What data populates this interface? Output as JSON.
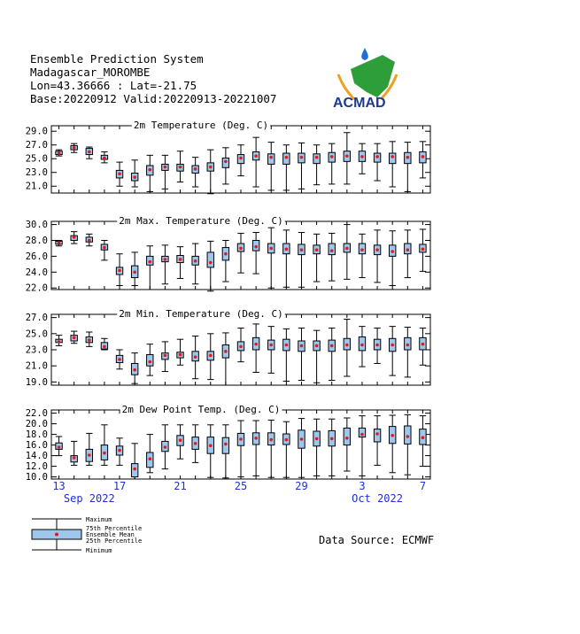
{
  "header": {
    "line1": "Ensemble Prediction System",
    "line2": "Madagascar_MOROMBE",
    "line3": "Lon=43.36666 : Lat=-21.75",
    "line4": "Base:20220912 Valid:20220913-20221007"
  },
  "logo": {
    "text": "ACMAD"
  },
  "source": "Data Source: ECMWF",
  "colors": {
    "box_fill": "#9fc7ee",
    "mean_dot": "#e01b1b",
    "x_labels": "#1f2fd6"
  },
  "legend": {
    "maximum": "Maximum",
    "p75": "75th Percentile",
    "mean": "Ensemble Mean",
    "p25": "25th Percentile",
    "minimum": "Minimum"
  },
  "x_axis": {
    "days": [
      "13",
      "14",
      "15",
      "16",
      "17",
      "18",
      "19",
      "20",
      "21",
      "22",
      "23",
      "24",
      "25",
      "26",
      "27",
      "28",
      "29",
      "30",
      "1",
      "2",
      "3",
      "4",
      "5",
      "6",
      "7"
    ],
    "tick_labels": [
      {
        "day_index": 0,
        "label": "13"
      },
      {
        "day_index": 4,
        "label": "17"
      },
      {
        "day_index": 8,
        "label": "21"
      },
      {
        "day_index": 12,
        "label": "25"
      },
      {
        "day_index": 16,
        "label": "29"
      },
      {
        "day_index": 20,
        "label": "3"
      },
      {
        "day_index": 24,
        "label": "7"
      }
    ],
    "month_labels": [
      {
        "day_index": 2,
        "label": "Sep 2022"
      },
      {
        "day_index": 21,
        "label": "Oct 2022"
      }
    ]
  },
  "chart_data": [
    {
      "type": "boxplot",
      "title": "2m Temperature (Deg. C)",
      "ylim": [
        20.0,
        29.8
      ],
      "yticks": [
        "21.0",
        "23.0",
        "25.0",
        "27.0",
        "29.0"
      ],
      "min": [
        25.4,
        25.9,
        25.0,
        24.4,
        21.0,
        20.9,
        20.2,
        20.6,
        21.6,
        20.9,
        19.9,
        21.3,
        22.5,
        20.9,
        20.4,
        20.4,
        20.6,
        21.2,
        21.3,
        21.3,
        22.8,
        21.8,
        20.9,
        20.2,
        22.2
      ],
      "p25": [
        25.6,
        26.3,
        25.6,
        24.9,
        22.2,
        21.8,
        22.6,
        23.3,
        23.2,
        22.9,
        23.2,
        23.7,
        24.3,
        24.8,
        24.2,
        24.2,
        24.4,
        24.3,
        24.5,
        24.6,
        24.6,
        24.5,
        24.3,
        24.3,
        24.4
      ],
      "mean": [
        25.8,
        26.6,
        26.0,
        25.1,
        22.8,
        22.3,
        23.4,
        23.8,
        23.8,
        23.5,
        23.8,
        24.6,
        25.1,
        25.4,
        25.2,
        25.2,
        25.2,
        25.2,
        25.3,
        25.4,
        25.3,
        25.3,
        25.3,
        25.2,
        25.3
      ],
      "p75": [
        26.1,
        26.9,
        26.5,
        25.5,
        23.3,
        22.9,
        24.0,
        24.2,
        24.2,
        24.0,
        24.4,
        25.1,
        25.6,
        26.0,
        25.7,
        25.8,
        25.8,
        25.7,
        25.9,
        26.1,
        26.1,
        25.8,
        25.8,
        25.9,
        26.0
      ],
      "max": [
        26.3,
        27.2,
        26.7,
        26.0,
        24.5,
        24.8,
        25.5,
        25.5,
        26.1,
        25.2,
        26.3,
        26.6,
        27.0,
        28.1,
        27.4,
        27.0,
        27.3,
        27.0,
        27.2,
        28.8,
        27.2,
        27.2,
        27.5,
        27.4,
        27.5
      ]
    },
    {
      "type": "boxplot",
      "title": "2m Max. Temperature (Deg. C)",
      "ylim": [
        21.8,
        30.4
      ],
      "yticks": [
        "22.0",
        "24.0",
        "26.0",
        "28.0",
        "30.0"
      ],
      "min": [
        27.3,
        27.6,
        27.3,
        25.5,
        22.3,
        22.3,
        21.8,
        22.5,
        23.2,
        22.5,
        21.6,
        22.8,
        23.9,
        23.8,
        22.0,
        22.1,
        22.1,
        22.8,
        22.9,
        23.1,
        23.3,
        22.7,
        22.3,
        23.3,
        24.1
      ],
      "p25": [
        27.5,
        28.0,
        27.8,
        26.8,
        23.7,
        23.3,
        24.9,
        25.3,
        25.2,
        24.9,
        24.6,
        25.5,
        26.6,
        26.7,
        26.4,
        26.3,
        26.2,
        26.3,
        26.2,
        26.5,
        26.3,
        26.2,
        26.0,
        26.3,
        26.5
      ],
      "mean": [
        27.7,
        28.4,
        28.0,
        27.1,
        24.2,
        24.0,
        25.3,
        25.6,
        25.6,
        25.4,
        25.2,
        26.3,
        27.0,
        27.2,
        27.0,
        26.9,
        26.8,
        26.8,
        26.7,
        27.0,
        26.8,
        26.8,
        26.6,
        26.8,
        26.9
      ],
      "p75": [
        27.9,
        28.6,
        28.4,
        27.5,
        24.6,
        24.8,
        26.0,
        26.0,
        26.1,
        26.0,
        26.5,
        27.1,
        27.6,
        28.0,
        27.6,
        27.6,
        27.5,
        27.4,
        27.6,
        27.6,
        27.6,
        27.4,
        27.4,
        27.6,
        27.5
      ],
      "max": [
        28.0,
        29.1,
        28.8,
        28.0,
        26.3,
        26.5,
        27.3,
        27.4,
        27.2,
        27.6,
        27.9,
        28.0,
        28.9,
        29.0,
        29.6,
        29.3,
        29.0,
        28.8,
        28.9,
        30.0,
        28.8,
        29.3,
        29.2,
        29.3,
        29.4
      ]
    },
    {
      "type": "boxplot",
      "title": "2m Min. Temperature (Deg. C)",
      "ylim": [
        18.6,
        27.4
      ],
      "yticks": [
        "19.0",
        "21.0",
        "23.0",
        "25.0",
        "27.0"
      ],
      "min": [
        23.5,
        23.8,
        23.4,
        23.0,
        20.6,
        18.8,
        19.8,
        20.3,
        21.1,
        19.4,
        19.3,
        18.6,
        21.5,
        20.2,
        20.1,
        19.1,
        19.2,
        18.9,
        19.2,
        19.7,
        20.9,
        21.3,
        19.8,
        19.6,
        21.1
      ],
      "p25": [
        23.9,
        24.1,
        23.9,
        23.1,
        21.4,
        19.9,
        21.0,
        21.8,
        22.0,
        21.6,
        21.7,
        22.0,
        22.9,
        23.0,
        23.0,
        22.9,
        22.8,
        22.9,
        22.8,
        23.0,
        22.9,
        23.0,
        22.8,
        23.0,
        23.0
      ],
      "mean": [
        24.0,
        24.5,
        24.2,
        23.4,
        21.8,
        20.5,
        21.5,
        22.3,
        22.4,
        22.1,
        22.3,
        22.8,
        23.4,
        23.7,
        23.6,
        23.6,
        23.5,
        23.5,
        23.5,
        23.6,
        23.6,
        23.6,
        23.6,
        23.6,
        23.7
      ],
      "p75": [
        24.3,
        24.8,
        24.6,
        23.9,
        22.3,
        21.3,
        22.4,
        22.6,
        22.7,
        22.8,
        22.8,
        23.6,
        24.0,
        24.5,
        24.2,
        24.3,
        24.1,
        24.1,
        24.2,
        24.4,
        24.6,
        24.3,
        24.4,
        24.5,
        24.5
      ],
      "max": [
        24.8,
        25.3,
        25.2,
        24.4,
        23.0,
        22.6,
        23.7,
        24.0,
        24.3,
        24.7,
        25.0,
        25.1,
        25.7,
        26.2,
        25.9,
        25.6,
        25.7,
        25.4,
        25.7,
        26.8,
        25.9,
        25.7,
        25.9,
        25.8,
        25.7
      ]
    },
    {
      "type": "boxplot",
      "title": "2m Dew Point Temp. (Deg. C)",
      "ylim": [
        9.6,
        22.6
      ],
      "yticks": [
        "10.0",
        "12.0",
        "14.0",
        "16.0",
        "18.0",
        "20.0",
        "22.0"
      ],
      "min": [
        14.0,
        12.2,
        12.2,
        12.2,
        12.2,
        9.6,
        10.8,
        11.5,
        13.4,
        12.7,
        9.9,
        9.8,
        10.0,
        10.2,
        9.9,
        9.9,
        9.9,
        10.2,
        10.2,
        11.1,
        10.2,
        12.2,
        10.8,
        10.4,
        12.0
      ],
      "p25": [
        15.2,
        12.8,
        12.9,
        13.2,
        14.1,
        10.0,
        11.8,
        14.8,
        15.9,
        15.2,
        14.4,
        14.4,
        15.9,
        16.1,
        16.0,
        16.1,
        15.4,
        15.8,
        15.8,
        16.0,
        17.5,
        16.6,
        16.3,
        16.2,
        16.1
      ],
      "mean": [
        15.6,
        13.6,
        14.1,
        14.5,
        15.0,
        11.5,
        13.4,
        15.6,
        16.9,
        16.3,
        15.9,
        16.2,
        17.1,
        17.3,
        17.0,
        17.0,
        17.1,
        17.2,
        17.2,
        17.3,
        18.0,
        18.1,
        17.8,
        17.6,
        17.4
      ],
      "p75": [
        16.4,
        14.0,
        15.2,
        16.0,
        15.8,
        12.5,
        14.6,
        16.7,
        17.8,
        17.5,
        17.5,
        17.4,
        18.2,
        18.3,
        18.3,
        18.1,
        18.8,
        18.6,
        18.7,
        19.2,
        19.2,
        19.0,
        19.5,
        19.6,
        19.0
      ],
      "max": [
        17.6,
        16.7,
        18.2,
        19.8,
        17.3,
        16.3,
        18.0,
        19.8,
        19.8,
        19.8,
        19.8,
        19.8,
        20.6,
        20.6,
        20.7,
        20.4,
        21.0,
        20.9,
        20.9,
        21.1,
        21.5,
        21.5,
        21.6,
        21.7,
        21.5
      ]
    }
  ]
}
